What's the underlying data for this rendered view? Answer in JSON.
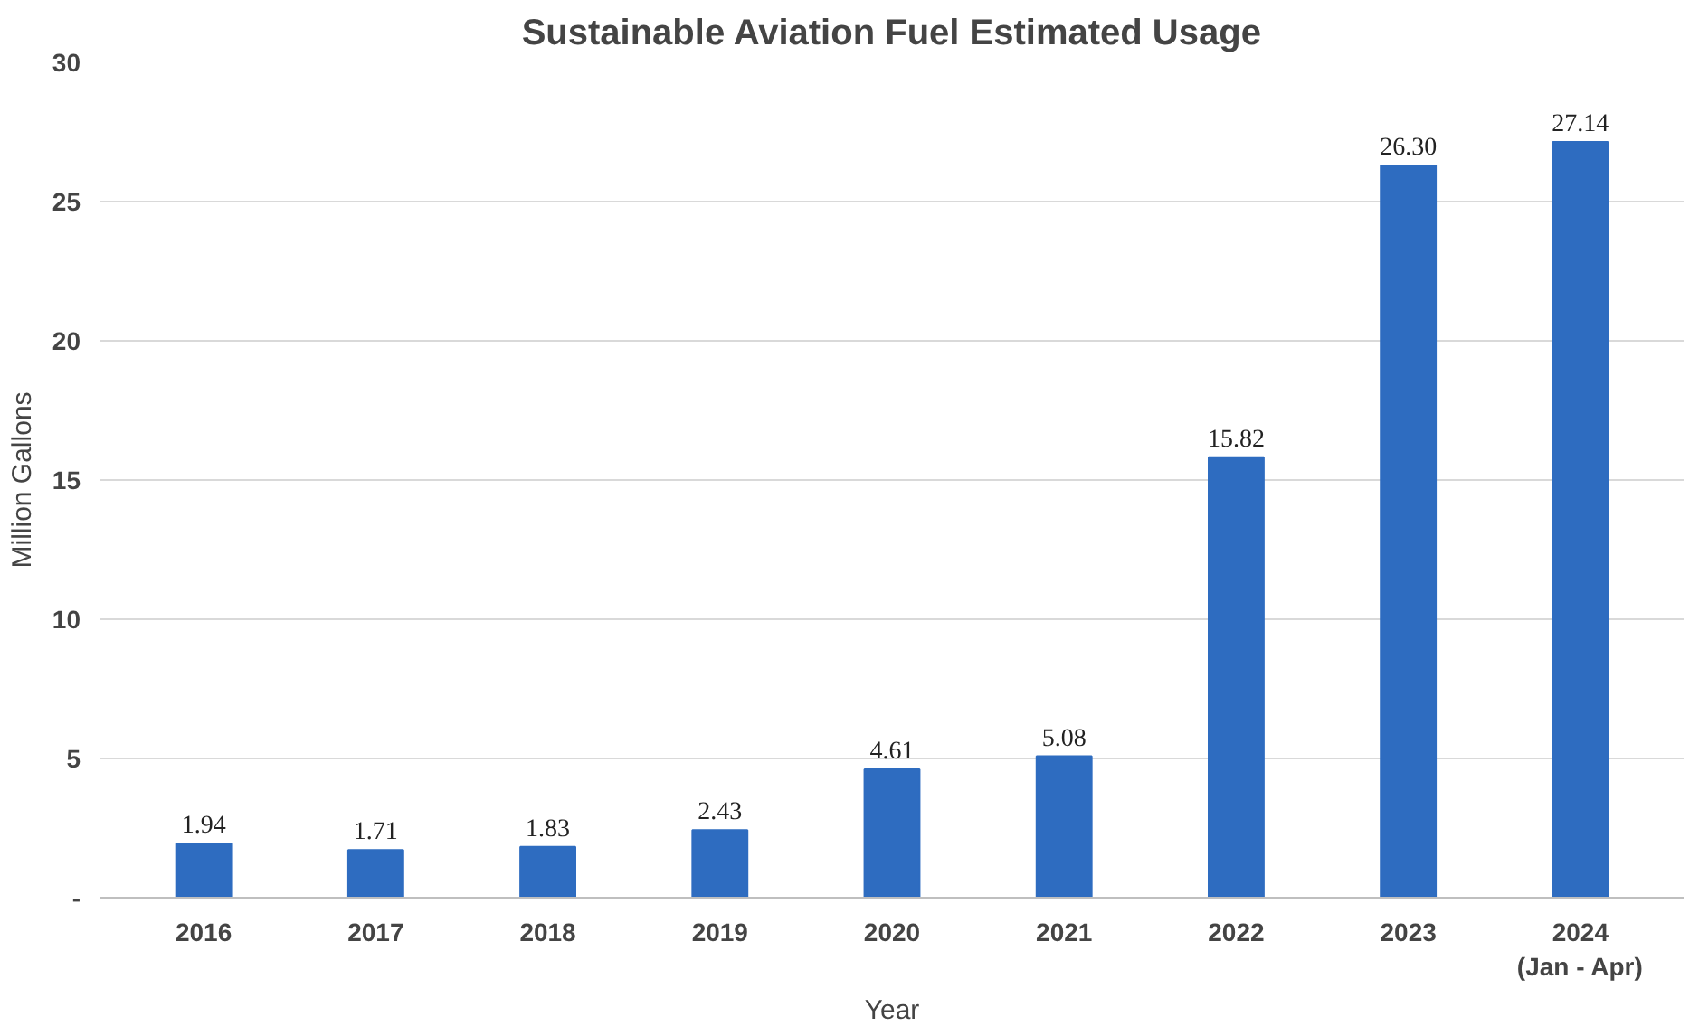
{
  "chart_data": {
    "type": "bar",
    "title": "Sustainable Aviation Fuel Estimated Usage",
    "xlabel": "Year",
    "ylabel": "Million Gallons",
    "categories": [
      "2016",
      "2017",
      "2018",
      "2019",
      "2020",
      "2021",
      "2022",
      "2023",
      "2024\n(Jan - Apr)"
    ],
    "values": [
      1.94,
      1.71,
      1.83,
      2.43,
      4.61,
      5.08,
      15.82,
      26.3,
      27.14
    ],
    "value_labels": [
      "1.94",
      "1.71",
      "1.83",
      "2.43",
      "4.61",
      "5.08",
      "15.82",
      "26.30",
      "27.14"
    ],
    "color": "#2e6cc0",
    "ylim": [
      0,
      30
    ],
    "yticks": [
      {
        "value": 0,
        "label": "-"
      },
      5,
      10,
      15,
      20,
      25,
      30
    ],
    "grid": "y"
  }
}
